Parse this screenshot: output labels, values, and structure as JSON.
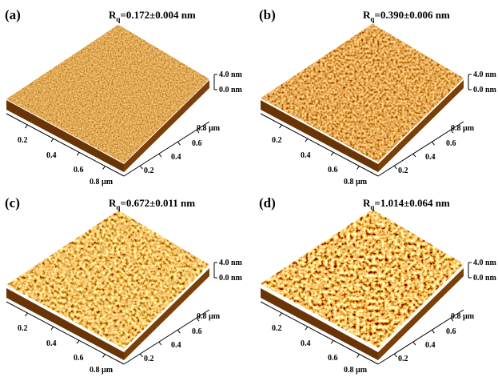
{
  "panels": [
    {
      "label": "(a)",
      "rq": {
        "symbol": "R",
        "subscript": "q",
        "value": "=0.172±0.004 nm"
      },
      "scale": [
        "4.0 nm",
        "0.0 nm"
      ],
      "x_ticks": [
        "0.2",
        "0.4",
        "0.6",
        "0.8 µm"
      ],
      "y_ticks": [
        "0.8 µm",
        "0.6",
        "0.4",
        "0.2"
      ]
    },
    {
      "label": "(b)",
      "rq": {
        "symbol": "R",
        "subscript": "q",
        "value": "=0.390±0.006 nm"
      },
      "scale": [
        "4.0 nm",
        "0.0 nm"
      ],
      "x_ticks": [
        "0.2",
        "0.4",
        "0.6",
        "0.8 µm"
      ],
      "y_ticks": [
        "0.8 µm",
        "0.6",
        "0.4",
        "0.2"
      ]
    },
    {
      "label": "(c)",
      "rq": {
        "symbol": "R",
        "subscript": "q",
        "value": "=0.672±0.011 nm"
      },
      "scale": [
        "4.0 nm",
        "0.0 nm"
      ],
      "x_ticks": [
        "0.2",
        "0.4",
        "0.6",
        "0.8 µm"
      ],
      "y_ticks": [
        "0.8 µm",
        "0.6",
        "0.4",
        "0.2"
      ]
    },
    {
      "label": "(d)",
      "rq": {
        "symbol": "R",
        "subscript": "q",
        "value": "=1.014±0.064 nm"
      },
      "scale": [
        "4.0 nm",
        "0.0 nm"
      ],
      "x_ticks": [
        "0.2",
        "0.4",
        "0.6",
        "0.8 µm"
      ],
      "y_ticks": [
        "0.8 µm",
        "0.6",
        "0.4",
        "0.2"
      ]
    }
  ]
}
